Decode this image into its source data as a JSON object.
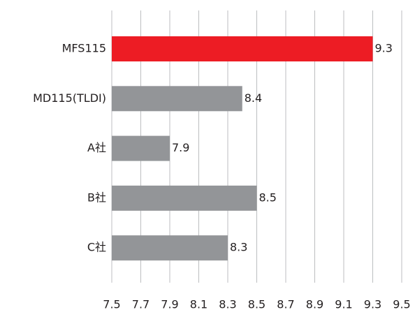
{
  "chart_data": {
    "type": "bar",
    "orientation": "horizontal",
    "categories": [
      "MFS115",
      "MD115(TLDI)",
      "A社",
      "B社",
      "C社"
    ],
    "values": [
      9.3,
      8.4,
      7.9,
      8.5,
      8.3
    ],
    "colors": [
      "#ed1c24",
      "#939598",
      "#939598",
      "#939598",
      "#939598"
    ],
    "xlim": [
      7.5,
      9.5
    ],
    "xticks": [
      7.5,
      7.7,
      7.9,
      8.1,
      8.3,
      8.5,
      8.7,
      8.9,
      9.1,
      9.3,
      9.5
    ],
    "grid": true
  }
}
